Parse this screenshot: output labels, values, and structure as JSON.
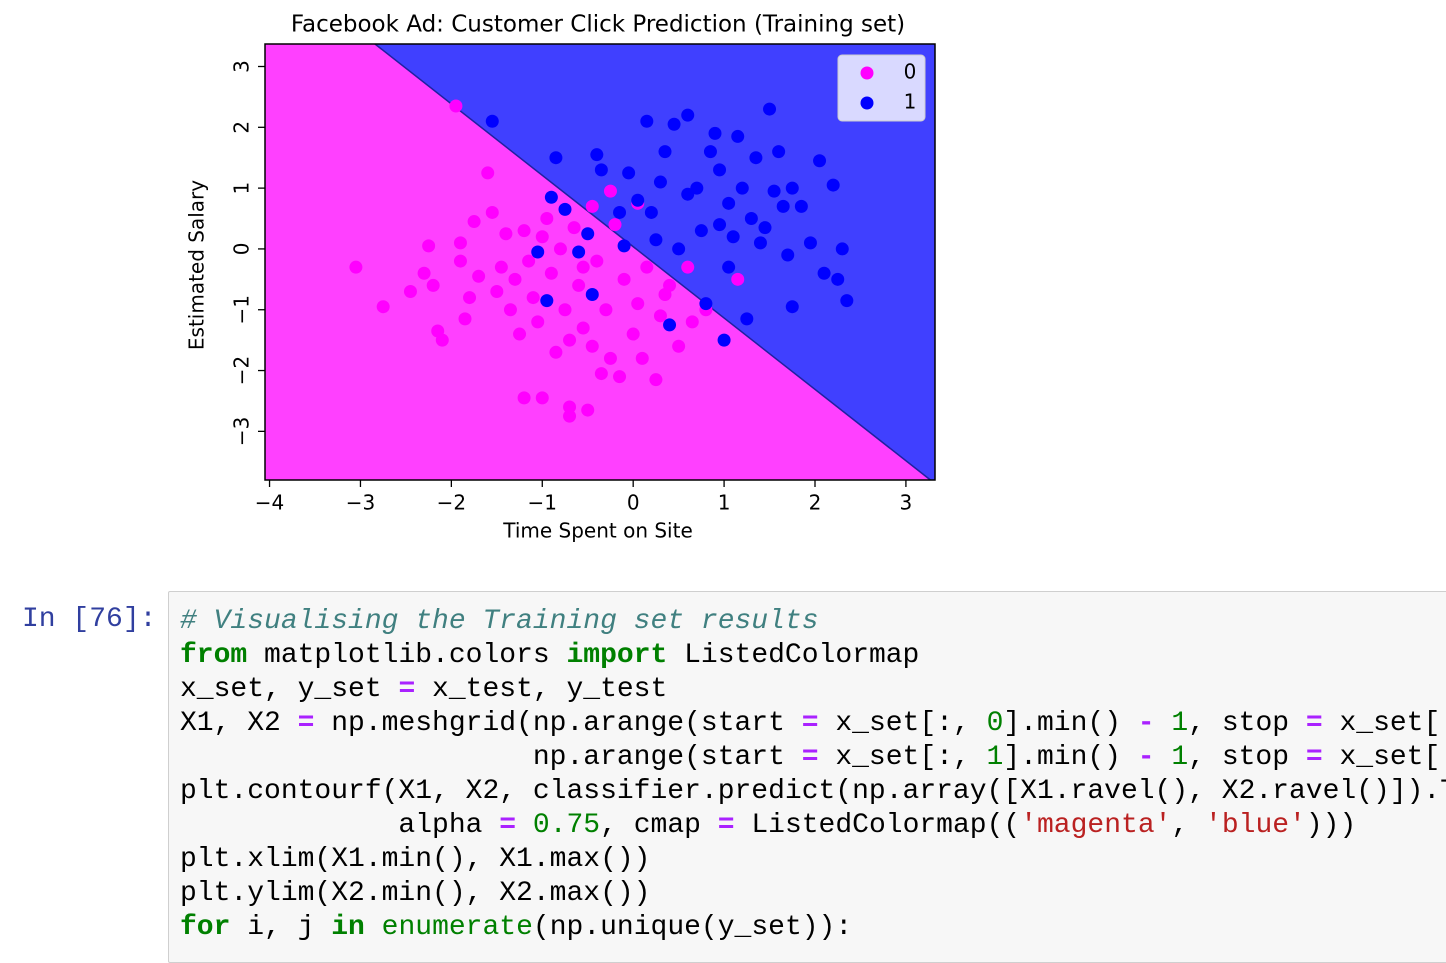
{
  "chart_data": {
    "type": "scatter",
    "title": "Facebook Ad: Customer Click Prediction (Training set)",
    "x_label": "Time Spent on Site",
    "y_label": "Estimated Salary",
    "xlim": [
      -4.05,
      3.32
    ],
    "ylim": [
      -3.8,
      3.37
    ],
    "xticks": [
      {
        "value": -4,
        "label": "−4"
      },
      {
        "value": -3,
        "label": "−3"
      },
      {
        "value": -2,
        "label": "−2"
      },
      {
        "value": -1,
        "label": "−1"
      },
      0,
      1,
      2,
      3
    ],
    "yticks": [
      {
        "value": -3,
        "label": "−3"
      },
      {
        "value": -2,
        "label": "−2"
      },
      {
        "value": -1,
        "label": "−1"
      },
      0,
      1,
      2,
      3
    ],
    "legend": "upper right",
    "decision_boundary": {
      "x": [
        -2.84,
        3.27
      ],
      "y": [
        3.37,
        -3.8
      ],
      "colors": [
        "#ff40ff",
        "#4040ff"
      ]
    },
    "series": [
      {
        "name": "0",
        "color": "#ff00ff",
        "x": [
          -3.05,
          -2.75,
          -2.45,
          -2.3,
          -2.25,
          -2.2,
          -2.15,
          -2.1,
          -1.95,
          -1.9,
          -1.9,
          -1.85,
          -1.8,
          -1.75,
          -1.7,
          -1.6,
          -1.55,
          -1.5,
          -1.45,
          -1.4,
          -1.35,
          -1.3,
          -1.25,
          -1.2,
          -1.2,
          -1.15,
          -1.1,
          -1.05,
          -1.0,
          -0.95,
          -0.9,
          -0.85,
          -0.8,
          -0.75,
          -0.7,
          -0.7,
          -0.65,
          -0.6,
          -0.55,
          -0.5,
          -0.45,
          -0.45,
          -0.4,
          -0.35,
          -0.3,
          -0.25,
          -0.2,
          -0.15,
          -0.1,
          0.0,
          0.05,
          0.1,
          0.15,
          0.25,
          0.3,
          0.4,
          0.5,
          0.6,
          0.65,
          0.8,
          1.15,
          0.05,
          -0.25,
          -0.55,
          0.35,
          -1.0,
          -0.7
        ],
        "y": [
          -0.3,
          -0.95,
          -0.7,
          -0.4,
          0.05,
          -0.6,
          -1.35,
          -1.5,
          2.35,
          -0.2,
          0.1,
          -1.15,
          -0.8,
          0.45,
          -0.45,
          1.25,
          0.6,
          -0.7,
          -0.3,
          0.25,
          -1.0,
          -0.5,
          -1.4,
          0.3,
          -2.45,
          -0.2,
          -0.8,
          -1.2,
          -2.45,
          0.5,
          -0.4,
          -1.7,
          0.0,
          -1.0,
          -2.6,
          -2.75,
          0.35,
          -0.6,
          -1.3,
          -2.65,
          0.7,
          -1.6,
          -0.2,
          -2.05,
          -1.0,
          -1.8,
          0.4,
          -2.1,
          -0.5,
          -1.4,
          -0.9,
          -1.8,
          -0.3,
          -2.15,
          -1.1,
          -0.6,
          -1.6,
          -0.3,
          -1.2,
          -1.0,
          -0.5,
          0.75,
          0.95,
          -0.3,
          -0.75,
          0.2,
          -1.5
        ]
      },
      {
        "name": "1",
        "color": "#0000ff",
        "x": [
          -1.55,
          -1.05,
          -0.95,
          -0.9,
          -0.75,
          -0.6,
          -0.5,
          -0.45,
          -0.4,
          -0.35,
          -0.05,
          0.05,
          0.15,
          0.2,
          0.35,
          0.4,
          0.45,
          0.6,
          0.7,
          0.75,
          0.8,
          0.85,
          0.95,
          1.0,
          1.05,
          1.1,
          1.15,
          1.2,
          1.25,
          1.3,
          1.35,
          1.4,
          1.5,
          1.55,
          1.6,
          1.65,
          1.7,
          1.75,
          1.75,
          1.85,
          1.95,
          2.05,
          2.1,
          2.2,
          2.25,
          2.3,
          2.35,
          0.5,
          0.95,
          0.25,
          -0.1,
          0.6,
          1.05,
          0.3,
          -0.15,
          0.9,
          -0.85,
          1.45
        ],
        "y": [
          2.1,
          -0.05,
          -0.85,
          0.85,
          0.65,
          -0.05,
          0.25,
          -0.75,
          1.55,
          1.3,
          1.25,
          0.8,
          2.1,
          0.6,
          1.6,
          -1.25,
          2.05,
          2.2,
          1.0,
          0.3,
          -0.9,
          1.6,
          1.3,
          -1.5,
          0.75,
          0.2,
          1.85,
          1.0,
          -1.15,
          0.5,
          1.5,
          0.1,
          2.3,
          0.95,
          1.6,
          0.7,
          -0.1,
          1.0,
          -0.95,
          0.7,
          0.1,
          1.45,
          -0.4,
          1.05,
          -0.5,
          0.0,
          -0.85,
          0.0,
          0.4,
          0.15,
          0.05,
          0.9,
          -0.3,
          1.1,
          0.6,
          1.9,
          1.5,
          0.35
        ]
      }
    ]
  },
  "notebook": {
    "prompt": "In [76]:",
    "code": [
      [
        {
          "t": "# Visualising the Training set results",
          "s": "cm"
        }
      ],
      [
        {
          "t": "from",
          "s": "kw"
        },
        {
          "t": " matplotlib.colors ",
          "s": "tx"
        },
        {
          "t": "import",
          "s": "kw"
        },
        {
          "t": " ListedColormap",
          "s": "tx"
        }
      ],
      [
        {
          "t": "x_set, y_set ",
          "s": "tx"
        },
        {
          "t": "=",
          "s": "op"
        },
        {
          "t": " x_test, y_test",
          "s": "tx"
        }
      ],
      [
        {
          "t": "X1, X2 ",
          "s": "tx"
        },
        {
          "t": "=",
          "s": "op"
        },
        {
          "t": " np.meshgrid(np.arange(start ",
          "s": "tx"
        },
        {
          "t": "=",
          "s": "op"
        },
        {
          "t": " x_set[:, ",
          "s": "tx"
        },
        {
          "t": "0",
          "s": "num"
        },
        {
          "t": "].min() ",
          "s": "tx"
        },
        {
          "t": "-",
          "s": "op"
        },
        {
          "t": " ",
          "s": "tx"
        },
        {
          "t": "1",
          "s": "num"
        },
        {
          "t": ", stop ",
          "s": "tx"
        },
        {
          "t": "=",
          "s": "op"
        },
        {
          "t": " x_set[:",
          "s": "tx"
        }
      ],
      [
        {
          "t": "                     np.arange(start ",
          "s": "tx"
        },
        {
          "t": "=",
          "s": "op"
        },
        {
          "t": " x_set[:, ",
          "s": "tx"
        },
        {
          "t": "1",
          "s": "num"
        },
        {
          "t": "].min() ",
          "s": "tx"
        },
        {
          "t": "-",
          "s": "op"
        },
        {
          "t": " ",
          "s": "tx"
        },
        {
          "t": "1",
          "s": "num"
        },
        {
          "t": ", stop ",
          "s": "tx"
        },
        {
          "t": "=",
          "s": "op"
        },
        {
          "t": " x_set[:",
          "s": "tx"
        }
      ],
      [
        {
          "t": "plt.contourf(X1, X2, classifier.predict(np.array([X1.ravel(), X2.ravel()]).T",
          "s": "tx"
        }
      ],
      [
        {
          "t": "             alpha ",
          "s": "tx"
        },
        {
          "t": "=",
          "s": "op"
        },
        {
          "t": " ",
          "s": "tx"
        },
        {
          "t": "0.75",
          "s": "num"
        },
        {
          "t": ", cmap ",
          "s": "tx"
        },
        {
          "t": "=",
          "s": "op"
        },
        {
          "t": " ListedColormap((",
          "s": "tx"
        },
        {
          "t": "'magenta'",
          "s": "str"
        },
        {
          "t": ", ",
          "s": "tx"
        },
        {
          "t": "'blue'",
          "s": "str"
        },
        {
          "t": ")))",
          "s": "tx"
        }
      ],
      [
        {
          "t": "plt.xlim(X1.min(), X1.max())",
          "s": "tx"
        }
      ],
      [
        {
          "t": "plt.ylim(X2.min(), X2.max())",
          "s": "tx"
        }
      ],
      [
        {
          "t": "for",
          "s": "kw"
        },
        {
          "t": " i, j ",
          "s": "tx"
        },
        {
          "t": "in",
          "s": "kw"
        },
        {
          "t": " ",
          "s": "tx"
        },
        {
          "t": "enumerate",
          "s": "bi"
        },
        {
          "t": "(np.unique(y_set)):",
          "s": "tx"
        }
      ]
    ]
  }
}
